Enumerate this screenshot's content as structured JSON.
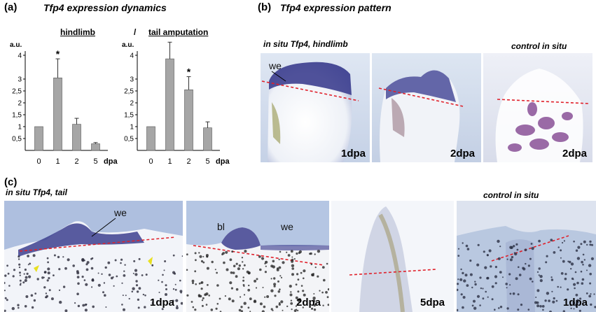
{
  "panel_a": {
    "letter": "(a)",
    "title": "Tfp4 expression dynamics",
    "header_left": "hindlimb",
    "header_sep": "/",
    "header_right": "tail amputation"
  },
  "panel_b": {
    "letter": "(b)",
    "title": "Tfp4 expression pattern",
    "subtitle_left": "in situ Tfp4, hindlimb",
    "subtitle_right": "control in situ",
    "images": [
      {
        "label": "1dpa",
        "annotation": "we"
      },
      {
        "label": "2dpa",
        "annotation": ""
      },
      {
        "label": "2dpa",
        "annotation": ""
      }
    ]
  },
  "panel_c": {
    "letter": "(c)",
    "subtitle_left": "in situ Tfp4, tail",
    "subtitle_right": "control in situ",
    "images": [
      {
        "label": "1dpa",
        "annotations": [
          "we"
        ]
      },
      {
        "label": "2dpa",
        "annotations": [
          "bl",
          "we"
        ]
      },
      {
        "label": "5dpa",
        "annotations": []
      },
      {
        "label": "1dpa",
        "annotations": []
      }
    ]
  },
  "colors": {
    "bar": "#a6a6a6",
    "stain": "#3d3f8f",
    "amputation_line": "#e0202a",
    "tissue_bg": "#c9d4e6"
  },
  "chart_data": [
    {
      "type": "bar",
      "title": "hindlimb",
      "ylabel": "a.u.",
      "xlabel": "dpa",
      "categories": [
        "0",
        "1",
        "2",
        "5"
      ],
      "values": [
        1.0,
        3.05,
        1.1,
        0.28
      ],
      "errors": [
        0,
        0.8,
        0.25,
        0.05
      ],
      "significance": [
        "",
        "*",
        "",
        ""
      ],
      "yticks": [
        "0,5",
        "1",
        "1,5",
        "2",
        "2,5",
        "3",
        "4"
      ],
      "ylim": [
        0,
        4
      ]
    },
    {
      "type": "bar",
      "title": "tail amputation",
      "ylabel": "a.u.",
      "xlabel": "dpa",
      "categories": [
        "0",
        "1",
        "2",
        "5"
      ],
      "values": [
        1.0,
        3.85,
        2.55,
        0.95
      ],
      "errors": [
        0,
        0.7,
        0.55,
        0.25
      ],
      "significance": [
        "",
        "*",
        "*",
        ""
      ],
      "yticks": [
        "0,5",
        "1",
        "1,5",
        "2",
        "2,5",
        "3",
        "4"
      ],
      "ylim": [
        0,
        4
      ]
    }
  ]
}
